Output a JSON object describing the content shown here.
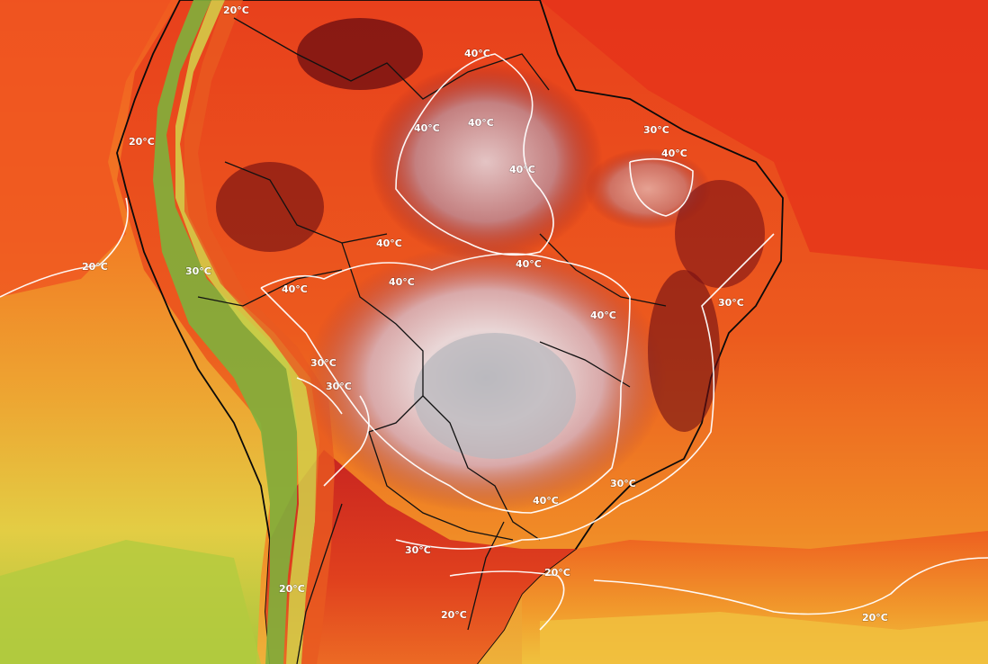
{
  "map": {
    "colors": {
      "ocean_deep": "#e63a1c",
      "ocean_mid": "#f0561d",
      "ocean_warm": "#ef7a22",
      "ocean_yellow": "#e9bf36",
      "ocean_green": "#9cc23a",
      "land_hot": "#8e1418",
      "land_very_hot": "#6a0c10",
      "land_extreme": "#efdcdc",
      "land_peak": "#b8b8bc",
      "andes_green": "#4f9a3a",
      "andes_yellow": "#c8d445",
      "south_hot": "#d2291f"
    },
    "labels": [
      {
        "id": "l1",
        "text": "40°C"
      },
      {
        "id": "l2",
        "text": "40°C"
      },
      {
        "id": "l3",
        "text": "40°C"
      },
      {
        "id": "l4",
        "text": "40°C"
      },
      {
        "id": "l5",
        "text": "40°C"
      },
      {
        "id": "l6",
        "text": "40°C"
      },
      {
        "id": "l7",
        "text": "40°C"
      },
      {
        "id": "l8",
        "text": "40°C"
      },
      {
        "id": "l9",
        "text": "40°C"
      },
      {
        "id": "l10",
        "text": "40°C"
      },
      {
        "id": "l11",
        "text": "30°C"
      },
      {
        "id": "l12",
        "text": "30°C"
      },
      {
        "id": "l13",
        "text": "30°C"
      },
      {
        "id": "l14",
        "text": "30°C"
      },
      {
        "id": "l15",
        "text": "30°C"
      },
      {
        "id": "l16",
        "text": "30°C"
      },
      {
        "id": "l17",
        "text": "20°C"
      },
      {
        "id": "l18",
        "text": "20°C"
      },
      {
        "id": "l19",
        "text": "20°C"
      },
      {
        "id": "l20",
        "text": "20°C"
      },
      {
        "id": "l21",
        "text": "20°C"
      },
      {
        "id": "l22",
        "text": "20°C"
      },
      {
        "id": "l23",
        "text": "20°C"
      },
      {
        "id": "l24",
        "text": "30°C"
      },
      {
        "id": "l25",
        "text": "40°C"
      }
    ]
  }
}
